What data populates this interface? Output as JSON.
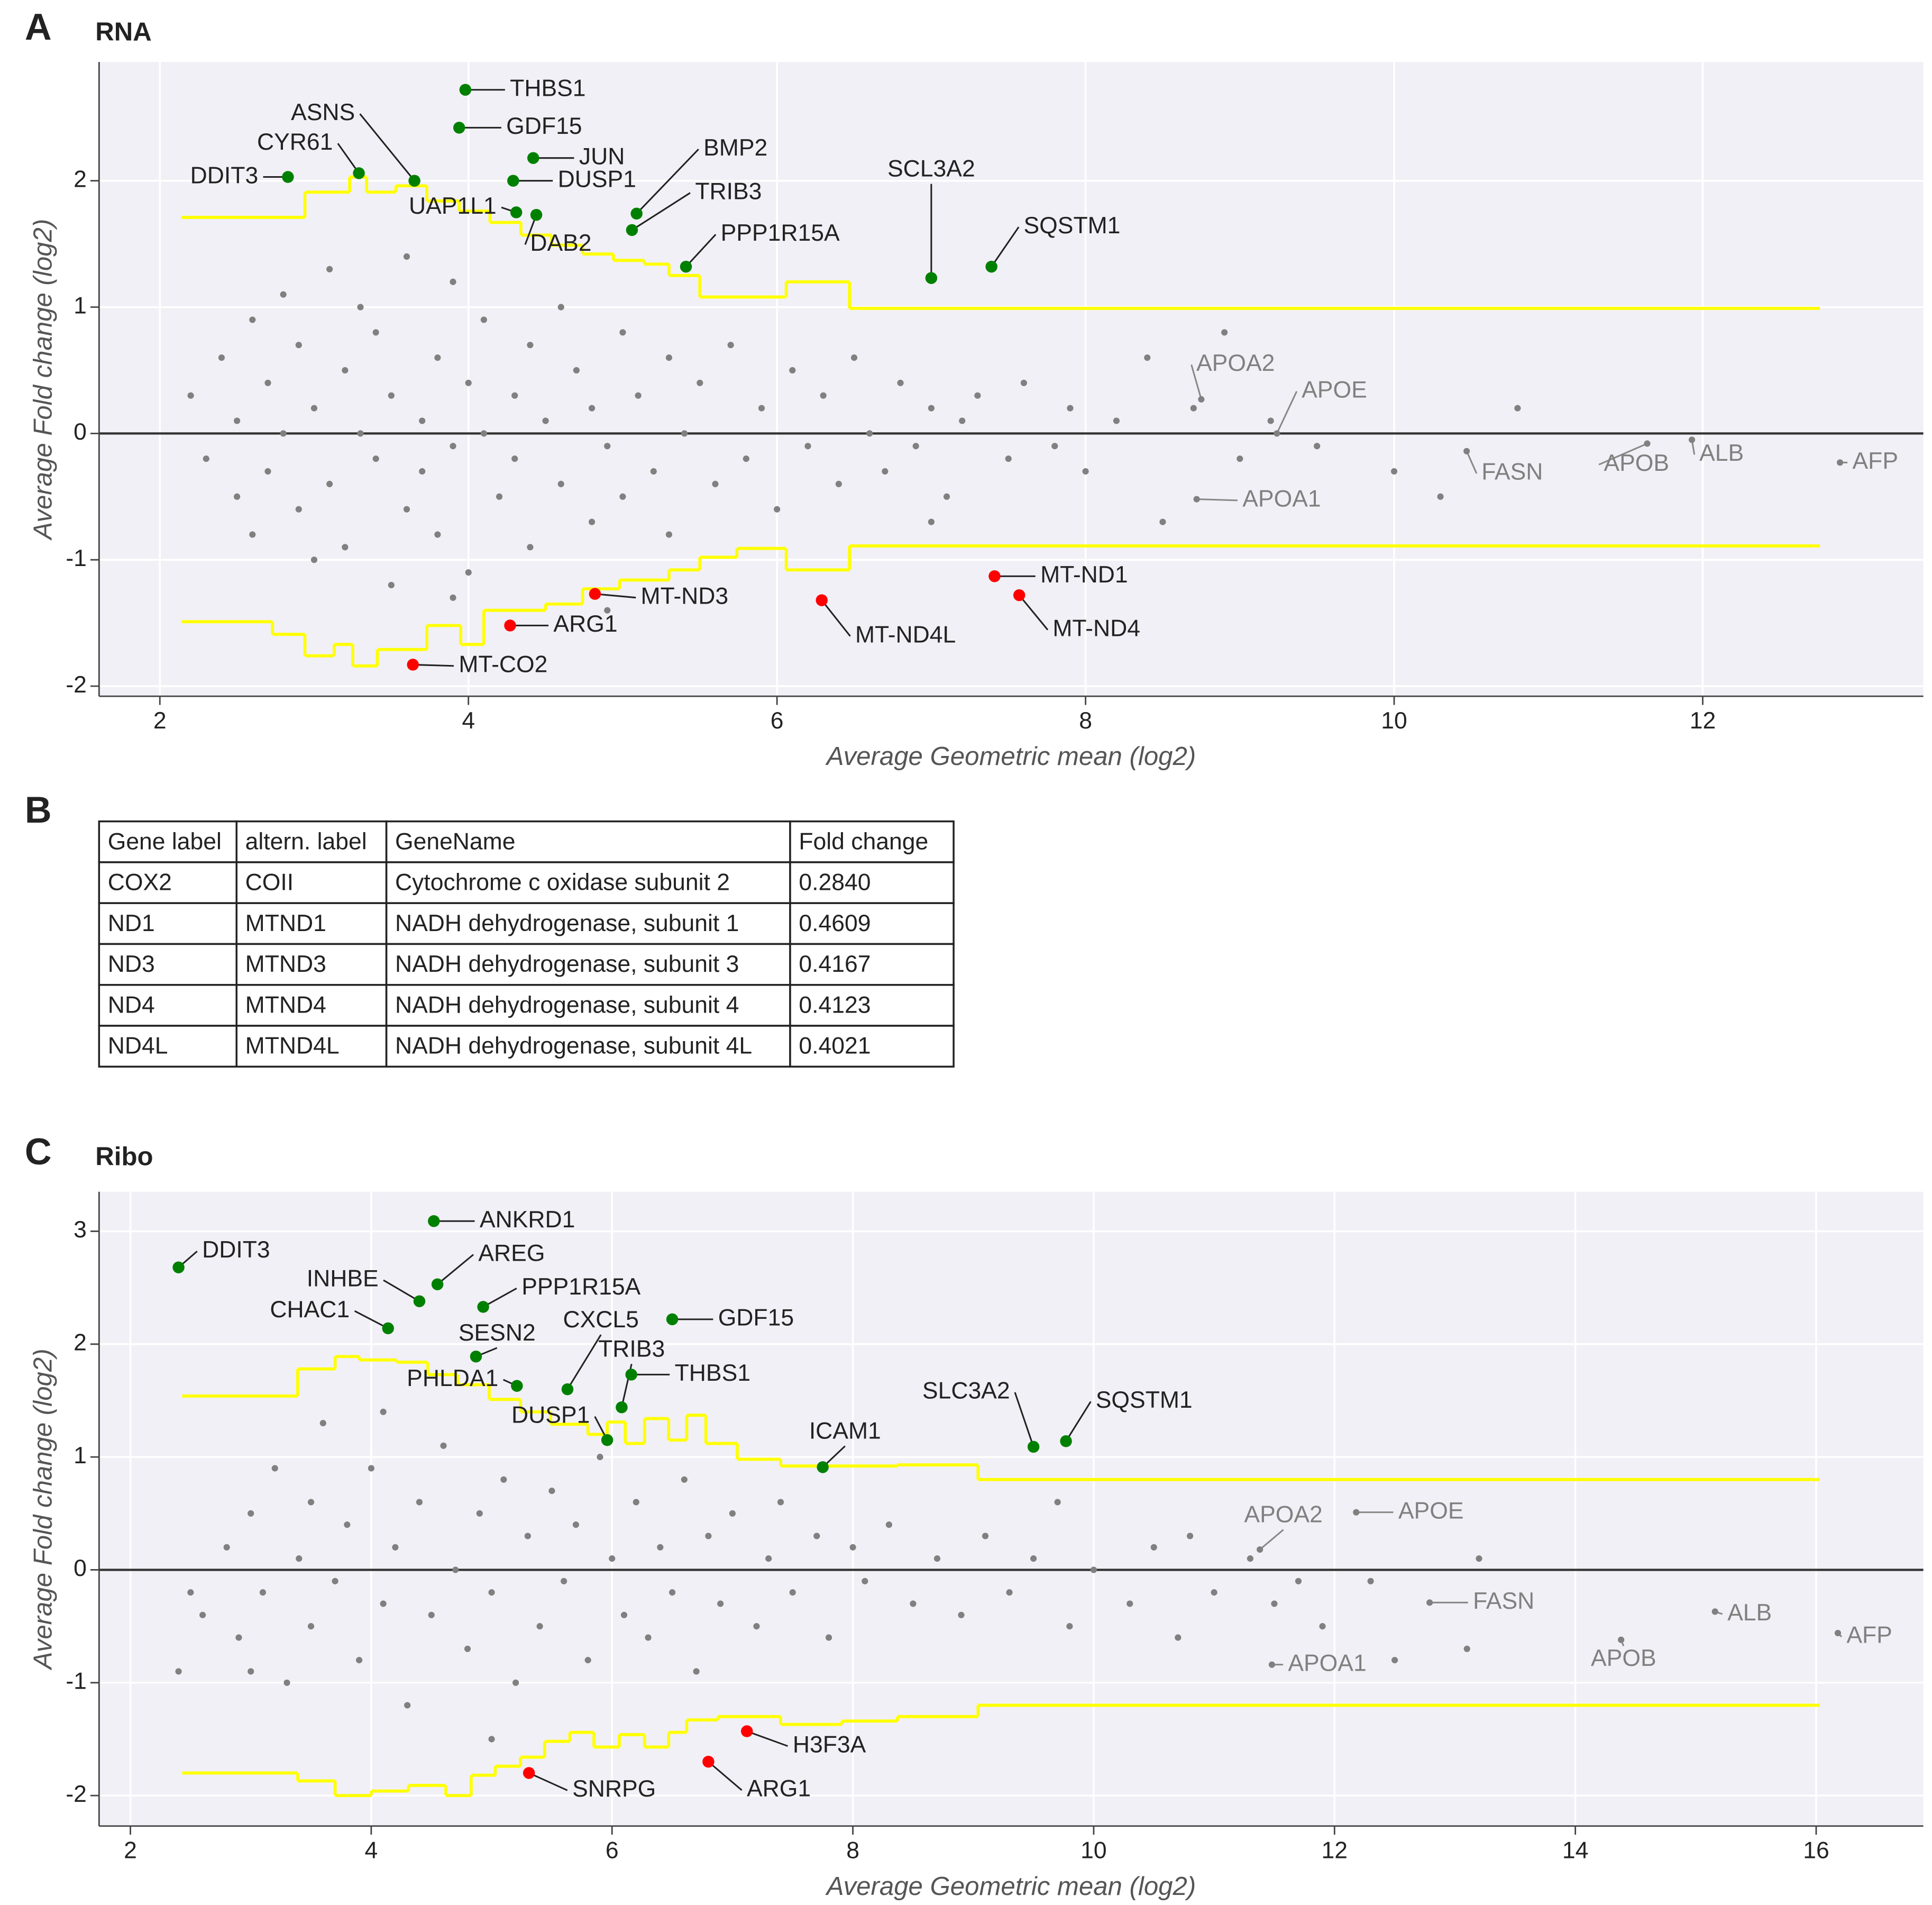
{
  "chart_data": [
    {
      "type": "scatter",
      "panel_label": "A",
      "title": "RNA",
      "xlabel": "Average Geometric mean (log2)",
      "ylabel": "Average Fold change (log2)",
      "xlim": [
        1.606,
        13.43
      ],
      "ylim": [
        -2.08,
        2.94
      ],
      "xticks": [
        2,
        4,
        6,
        8,
        10,
        12
      ],
      "yticks": [
        -2,
        -1,
        0,
        1,
        2
      ],
      "grid": true,
      "background": {
        "color": "#808080",
        "x": [
          2.2,
          2.3,
          2.4,
          2.5,
          2.5,
          2.6,
          2.6,
          2.7,
          2.7,
          2.8,
          2.8,
          2.9,
          2.9,
          3.0,
          3.0,
          3.1,
          3.1,
          3.2,
          3.2,
          3.3,
          3.3,
          3.4,
          3.4,
          3.5,
          3.5,
          3.6,
          3.6,
          3.7,
          3.7,
          3.8,
          3.8,
          3.9,
          3.9,
          4.0,
          4.0,
          4.1,
          4.1,
          4.2,
          4.3,
          4.3,
          4.4,
          4.4,
          4.5,
          4.6,
          4.6,
          4.7,
          4.8,
          4.8,
          4.9,
          5.0,
          5.0,
          5.1,
          5.2,
          5.3,
          5.3,
          5.4,
          5.5,
          5.6,
          5.7,
          5.8,
          5.9,
          6.0,
          6.1,
          6.2,
          6.3,
          6.4,
          6.5,
          6.6,
          6.7,
          6.8,
          6.9,
          7.0,
          7.1,
          7.2,
          7.3,
          7.5,
          7.6,
          7.8,
          7.9,
          8.0,
          8.2,
          8.4,
          8.5,
          8.7,
          8.9,
          9.0,
          9.2,
          9.5,
          10.0,
          10.3,
          10.8,
          7.0,
          4.9,
          3.9
        ],
        "y": [
          0.3,
          -0.2,
          0.6,
          -0.5,
          0.1,
          0.9,
          -0.8,
          0.4,
          -0.3,
          1.1,
          0.0,
          -0.6,
          0.7,
          -1.0,
          0.2,
          1.3,
          -0.4,
          0.5,
          -0.9,
          0.0,
          1.0,
          -0.2,
          0.8,
          -1.2,
          0.3,
          -0.6,
          1.4,
          0.1,
          -0.3,
          0.6,
          -0.8,
          1.2,
          -0.1,
          0.4,
          -1.1,
          0.0,
          0.9,
          -0.5,
          0.3,
          -0.2,
          0.7,
          -0.9,
          0.1,
          1.0,
          -0.4,
          0.5,
          -0.7,
          0.2,
          -0.1,
          0.8,
          -0.5,
          0.3,
          -0.3,
          0.6,
          -0.8,
          0.0,
          0.4,
          -0.4,
          0.7,
          -0.2,
          0.2,
          -0.6,
          0.5,
          -0.1,
          0.3,
          -0.4,
          0.6,
          0.0,
          -0.3,
          0.4,
          -0.1,
          0.2,
          -0.5,
          0.1,
          0.3,
          -0.2,
          0.4,
          -0.1,
          0.2,
          -0.3,
          0.1,
          0.6,
          -0.7,
          0.2,
          0.8,
          -0.2,
          0.1,
          -0.1,
          -0.3,
          -0.5,
          0.2,
          -0.7,
          -1.4,
          -1.3
        ]
      },
      "thresholds": {
        "color": "#ffff00",
        "lines": [
          {
            "x": [
              2.14,
              2.94,
              3.23,
              3.34,
              3.53,
              3.73,
              3.94,
              4.14,
              4.34,
              4.54,
              4.74,
              4.94,
              5.14,
              5.3,
              5.5,
              6.06,
              6.47,
              12.76
            ],
            "y": [
              1.71,
              1.91,
              2.03,
              1.91,
              1.96,
              1.84,
              1.76,
              1.67,
              1.57,
              1.49,
              1.42,
              1.37,
              1.34,
              1.25,
              1.08,
              1.2,
              0.99,
              0.99
            ]
          },
          {
            "x": [
              2.14,
              2.73,
              2.94,
              3.13,
              3.25,
              3.41,
              3.73,
              3.95,
              4.1,
              4.5,
              4.74,
              4.98,
              5.3,
              5.5,
              5.74,
              6.06,
              6.47,
              12.76
            ],
            "y": [
              -1.49,
              -1.59,
              -1.76,
              -1.67,
              -1.84,
              -1.71,
              -1.52,
              -1.67,
              -1.4,
              -1.35,
              -1.23,
              -1.16,
              -1.08,
              -0.98,
              -0.91,
              -1.08,
              -0.89,
              -0.89
            ]
          }
        ]
      },
      "genes": {
        "labels": [
          "DDIT3",
          "CYR61",
          "ASNS",
          "THBS1",
          "GDF15",
          "JUN",
          "DUSP1",
          "UAP1L1",
          "DAB2",
          "BMP2",
          "TRIB3",
          "PPP1R15A",
          "SCL3A2",
          "SQSTM1",
          "MT-ND3",
          "ARG1",
          "MT-CO2",
          "MT-ND4L",
          "MT-ND1",
          "MT-ND4",
          "APOA2",
          "APOE",
          "APOA1",
          "FASN",
          "APOB",
          "ALB",
          "AFP"
        ],
        "x": [
          2.83,
          3.29,
          3.65,
          3.98,
          3.94,
          4.42,
          4.29,
          4.31,
          4.44,
          5.09,
          5.06,
          5.41,
          7.0,
          7.39,
          4.82,
          4.27,
          3.64,
          6.29,
          7.41,
          7.57,
          8.75,
          9.24,
          8.72,
          10.47,
          11.64,
          11.93,
          12.89
        ],
        "y": [
          2.03,
          2.06,
          2.0,
          2.72,
          2.42,
          2.18,
          2.0,
          1.75,
          1.73,
          1.74,
          1.61,
          1.32,
          1.23,
          1.32,
          -1.27,
          -1.52,
          -1.83,
          -1.32,
          -1.13,
          -1.28,
          0.27,
          0.0,
          -0.52,
          -0.14,
          -0.08,
          -0.05,
          -0.23
        ],
        "colors": [
          "#008000",
          "#008000",
          "#008000",
          "#008000",
          "#008000",
          "#008000",
          "#008000",
          "#008000",
          "#008000",
          "#008000",
          "#008000",
          "#008000",
          "#008000",
          "#008000",
          "#ff0000",
          "#ff0000",
          "#ff0000",
          "#ff0000",
          "#ff0000",
          "#ff0000",
          "#808080",
          "#808080",
          "#808080",
          "#808080",
          "#808080",
          "#808080",
          "#808080"
        ]
      }
    },
    {
      "type": "scatter",
      "panel_label": "C",
      "title": "Ribo",
      "xlabel": "Average Geometric mean (log2)",
      "ylabel": "Average Fold change (log2)",
      "xlim": [
        1.74,
        16.89
      ],
      "ylim": [
        -2.27,
        3.35
      ],
      "xticks": [
        2,
        4,
        6,
        8,
        10,
        12,
        14,
        16
      ],
      "yticks": [
        -2,
        -1,
        0,
        1,
        2,
        3
      ],
      "grid": true,
      "background": {
        "color": "#808080",
        "x": [
          2.4,
          2.6,
          2.8,
          2.9,
          3.0,
          3.1,
          3.2,
          3.3,
          3.4,
          3.5,
          3.5,
          3.6,
          3.7,
          3.8,
          3.9,
          4.0,
          4.1,
          4.2,
          4.3,
          4.4,
          4.5,
          4.6,
          4.7,
          4.8,
          4.9,
          5.0,
          5.1,
          5.2,
          5.3,
          5.4,
          5.5,
          5.6,
          5.7,
          5.8,
          5.9,
          6.0,
          6.1,
          6.2,
          6.3,
          6.4,
          6.5,
          6.6,
          6.7,
          6.8,
          6.9,
          7.0,
          7.2,
          7.3,
          7.4,
          7.5,
          7.7,
          7.8,
          8.0,
          8.1,
          8.3,
          8.5,
          8.7,
          8.9,
          9.1,
          9.3,
          9.5,
          9.7,
          9.8,
          10.0,
          10.3,
          10.5,
          10.7,
          10.8,
          11.0,
          11.3,
          11.5,
          11.7,
          11.9,
          12.3,
          12.5,
          13.2,
          13.1,
          2.5,
          3.0,
          4.1,
          5.0
        ],
        "y": [
          -0.9,
          -0.4,
          0.2,
          -0.6,
          0.5,
          -0.2,
          0.9,
          -1.0,
          0.1,
          0.6,
          -0.5,
          1.3,
          -0.1,
          0.4,
          -0.8,
          0.9,
          -0.3,
          0.2,
          -1.2,
          0.6,
          -0.4,
          1.1,
          0.0,
          -0.7,
          0.5,
          -0.2,
          0.8,
          -1.0,
          0.3,
          -0.5,
          0.7,
          -0.1,
          0.4,
          -0.8,
          1.0,
          0.1,
          -0.4,
          0.6,
          -0.6,
          0.2,
          -0.2,
          0.8,
          -0.9,
          0.3,
          -0.3,
          0.5,
          -0.5,
          0.1,
          0.6,
          -0.2,
          0.3,
          -0.6,
          0.2,
          -0.1,
          0.4,
          -0.3,
          0.1,
          -0.4,
          0.3,
          -0.2,
          0.1,
          0.6,
          -0.5,
          0.0,
          -0.3,
          0.2,
          -0.6,
          0.3,
          -0.2,
          0.1,
          -0.3,
          -0.1,
          -0.5,
          -0.1,
          -0.8,
          0.1,
          -0.7,
          -0.2,
          -0.9,
          1.4,
          -1.5
        ]
      },
      "thresholds": {
        "color": "#ffff00",
        "lines": [
          {
            "x": [
              2.43,
              3.39,
              3.7,
              3.9,
              4.21,
              4.47,
              4.72,
              4.98,
              5.24,
              5.49,
              5.8,
              5.96,
              6.11,
              6.27,
              6.47,
              6.62,
              6.78,
              7.04,
              7.4,
              7.91,
              8.37,
              9.04,
              16.03
            ],
            "y": [
              1.54,
              1.78,
              1.89,
              1.86,
              1.84,
              1.73,
              1.64,
              1.51,
              1.4,
              1.29,
              1.2,
              1.31,
              1.12,
              1.34,
              1.15,
              1.37,
              1.12,
              0.98,
              0.92,
              0.92,
              0.93,
              0.8,
              0.8
            ]
          },
          {
            "x": [
              2.43,
              3.39,
              3.7,
              4.0,
              4.31,
              4.62,
              4.83,
              5.03,
              5.24,
              5.44,
              5.65,
              5.85,
              6.06,
              6.27,
              6.47,
              6.62,
              6.88,
              7.4,
              7.91,
              8.37,
              9.04,
              16.03
            ],
            "y": [
              -1.8,
              -1.87,
              -2.0,
              -1.96,
              -1.91,
              -2.0,
              -1.82,
              -1.74,
              -1.66,
              -1.52,
              -1.44,
              -1.57,
              -1.46,
              -1.57,
              -1.44,
              -1.33,
              -1.3,
              -1.37,
              -1.34,
              -1.3,
              -1.2,
              -1.2
            ]
          }
        ]
      },
      "genes": {
        "labels": [
          "DDIT3",
          "ANKRD1",
          "AREG",
          "INHBE",
          "PPP1R15A",
          "CHAC1",
          "GDF15",
          "SESN2",
          "PHLDA1",
          "CXCL5",
          "TRIB3",
          "THBS1",
          "DUSP1",
          "ICAM1",
          "SLC3A2",
          "SQSTM1",
          "H3F3A",
          "ARG1",
          "SNRPG",
          "APOA2",
          "APOE",
          "FASN",
          "APOA1",
          "ALB",
          "APOB",
          "AFP"
        ],
        "x": [
          2.4,
          4.52,
          4.55,
          4.4,
          4.93,
          4.14,
          6.5,
          4.87,
          5.21,
          5.63,
          6.08,
          6.16,
          5.96,
          7.75,
          9.5,
          9.77,
          7.12,
          6.8,
          5.31,
          11.38,
          12.18,
          12.79,
          11.48,
          15.16,
          14.38,
          16.18
        ],
        "y": [
          2.68,
          3.09,
          2.53,
          2.38,
          2.33,
          2.14,
          2.22,
          1.89,
          1.63,
          1.6,
          1.44,
          1.73,
          1.15,
          0.91,
          1.09,
          1.14,
          -1.43,
          -1.7,
          -1.8,
          0.18,
          0.51,
          -0.29,
          -0.84,
          -0.37,
          -0.62,
          -0.56
        ],
        "colors": [
          "#008000",
          "#008000",
          "#008000",
          "#008000",
          "#008000",
          "#008000",
          "#008000",
          "#008000",
          "#008000",
          "#008000",
          "#008000",
          "#008000",
          "#008000",
          "#008000",
          "#008000",
          "#008000",
          "#ff0000",
          "#ff0000",
          "#ff0000",
          "#808080",
          "#808080",
          "#808080",
          "#808080",
          "#808080",
          "#808080",
          "#808080"
        ]
      }
    }
  ],
  "table": {
    "panel_label": "B",
    "header": [
      "Gene label",
      "altern. label",
      "GeneName",
      "Fold change"
    ],
    "rows": [
      [
        "COX2",
        "COII",
        "Cytochrome c oxidase subunit 2",
        "0.2840"
      ],
      [
        "ND1",
        "MTND1",
        "NADH dehydrogenase, subunit 1",
        "0.4609"
      ],
      [
        "ND3",
        "MTND3",
        "NADH dehydrogenase, subunit 3",
        "0.4167"
      ],
      [
        "ND4",
        "MTND4",
        "NADH dehydrogenase, subunit 4",
        "0.4123"
      ],
      [
        "ND4L",
        "MTND4L",
        "NADH dehydrogenase, subunit 4L",
        "0.4021"
      ]
    ]
  }
}
